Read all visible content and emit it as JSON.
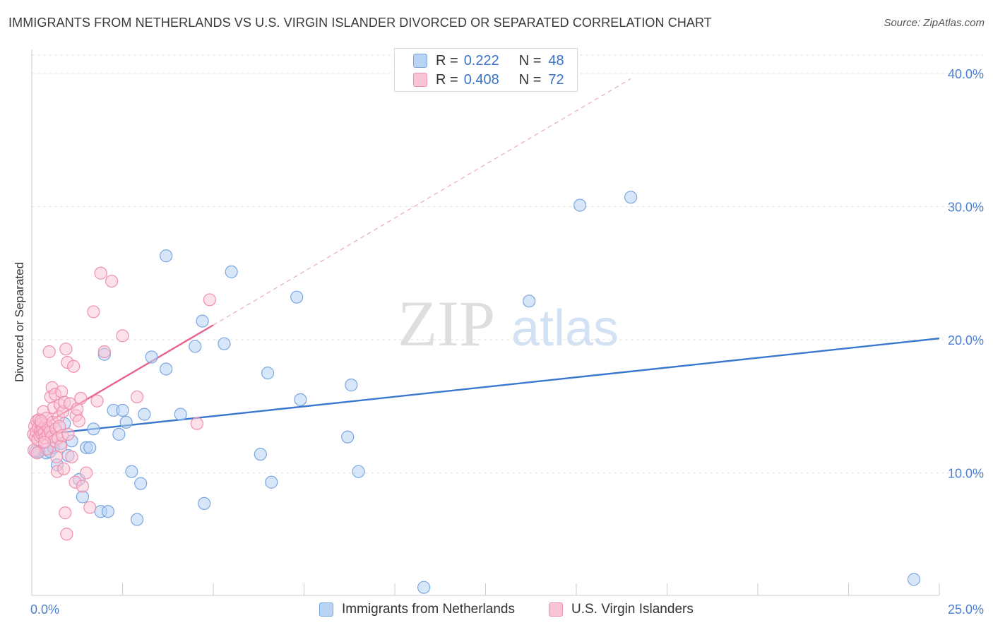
{
  "header": {
    "title": "IMMIGRANTS FROM NETHERLANDS VS U.S. VIRGIN ISLANDER DIVORCED OR SEPARATED CORRELATION CHART",
    "source": "Source: ZipAtlas.com"
  },
  "legend_top": {
    "rows": [
      {
        "r_label": "R =",
        "r_value": "0.222",
        "n_label": "N =",
        "n_value": "48"
      },
      {
        "r_label": "R =",
        "r_value": "0.408",
        "n_label": "N =",
        "n_value": "72"
      }
    ]
  },
  "legend_bottom": {
    "items": [
      "Immigrants from Netherlands",
      "U.S. Virgin Islanders"
    ]
  },
  "watermark": {
    "zip": "ZIP",
    "atlas": "atlas"
  },
  "colors": {
    "blue_fill": "#b8d2f4",
    "blue_stroke": "#7aa7e0",
    "blue_line": "#3a78cf",
    "pink_fill": "#f9c4d4",
    "pink_stroke": "#ef8fae",
    "pink_line": "#e8628f",
    "tick_text": "#4a7fd0",
    "grid": "#e3e3e3"
  },
  "chart_data": {
    "type": "scatter",
    "title": "IMMIGRANTS FROM NETHERLANDS VS U.S. VIRGIN ISLANDER DIVORCED OR SEPARATED CORRELATION CHART",
    "xlabel": "",
    "ylabel": "Divorced or Separated",
    "xlim": [
      0,
      25
    ],
    "ylim": [
      0.8,
      41.8
    ],
    "x_tick_labels": [
      "0.0%",
      "25.0%"
    ],
    "y_ticks": [
      10,
      20,
      30,
      40
    ],
    "y_tick_labels": [
      "10.0%",
      "20.0%",
      "30.0%",
      "40.0%"
    ],
    "grid": true,
    "series": [
      {
        "name": "Immigrants from Netherlands",
        "color": "#b8d2f4",
        "r": "0.222",
        "n": "48",
        "points": [
          [
            0.2,
            11.6
          ],
          [
            0.4,
            11.5
          ],
          [
            0.5,
            11.6
          ],
          [
            0.6,
            11.9
          ],
          [
            0.7,
            10.6
          ],
          [
            0.8,
            12.2
          ],
          [
            0.9,
            13.7
          ],
          [
            1.0,
            11.3
          ],
          [
            1.1,
            12.4
          ],
          [
            1.3,
            9.5
          ],
          [
            1.4,
            8.2
          ],
          [
            1.5,
            11.9
          ],
          [
            1.6,
            11.9
          ],
          [
            1.7,
            13.3
          ],
          [
            1.9,
            7.1
          ],
          [
            2.0,
            18.9
          ],
          [
            2.1,
            7.1
          ],
          [
            2.25,
            14.7
          ],
          [
            2.4,
            12.9
          ],
          [
            2.5,
            14.7
          ],
          [
            2.6,
            13.8
          ],
          [
            2.75,
            10.1
          ],
          [
            2.9,
            6.5
          ],
          [
            3.0,
            9.2
          ],
          [
            3.1,
            14.4
          ],
          [
            3.3,
            18.7
          ],
          [
            3.7,
            17.8
          ],
          [
            3.7,
            26.3
          ],
          [
            4.1,
            14.4
          ],
          [
            4.5,
            19.5
          ],
          [
            4.7,
            21.4
          ],
          [
            4.75,
            7.7
          ],
          [
            5.3,
            19.7
          ],
          [
            5.5,
            25.1
          ],
          [
            6.3,
            11.4
          ],
          [
            6.5,
            17.5
          ],
          [
            6.6,
            9.3
          ],
          [
            7.3,
            23.2
          ],
          [
            7.4,
            15.5
          ],
          [
            8.7,
            12.7
          ],
          [
            8.8,
            16.6
          ],
          [
            9.0,
            10.1
          ],
          [
            10.8,
            1.4
          ],
          [
            13.7,
            22.9
          ],
          [
            15.1,
            30.1
          ],
          [
            16.5,
            30.7
          ],
          [
            24.3,
            2.0
          ],
          [
            0.1,
            11.6
          ]
        ]
      },
      {
        "name": "U.S. Virgin Islanders",
        "color": "#f9c4d4",
        "r": "0.408",
        "n": "72",
        "points": [
          [
            0.05,
            12.9
          ],
          [
            0.08,
            13.5
          ],
          [
            0.1,
            12.7
          ],
          [
            0.12,
            13.1
          ],
          [
            0.14,
            13.9
          ],
          [
            0.16,
            12.5
          ],
          [
            0.18,
            13.4
          ],
          [
            0.2,
            14.0
          ],
          [
            0.22,
            12.8
          ],
          [
            0.24,
            13.2
          ],
          [
            0.26,
            13.7
          ],
          [
            0.28,
            12.9
          ],
          [
            0.3,
            13.3
          ],
          [
            0.32,
            14.6
          ],
          [
            0.34,
            13.0
          ],
          [
            0.36,
            12.6
          ],
          [
            0.38,
            13.6
          ],
          [
            0.4,
            14.1
          ],
          [
            0.42,
            11.8
          ],
          [
            0.44,
            12.9
          ],
          [
            0.46,
            13.4
          ],
          [
            0.48,
            19.1
          ],
          [
            0.5,
            13.1
          ],
          [
            0.52,
            15.7
          ],
          [
            0.54,
            12.7
          ],
          [
            0.56,
            16.4
          ],
          [
            0.58,
            13.8
          ],
          [
            0.6,
            14.9
          ],
          [
            0.62,
            12.4
          ],
          [
            0.64,
            15.9
          ],
          [
            0.66,
            13.3
          ],
          [
            0.68,
            11.2
          ],
          [
            0.7,
            10.1
          ],
          [
            0.72,
            12.6
          ],
          [
            0.74,
            14.2
          ],
          [
            0.76,
            13.5
          ],
          [
            0.78,
            15.1
          ],
          [
            0.8,
            12.0
          ],
          [
            0.82,
            16.1
          ],
          [
            0.84,
            12.8
          ],
          [
            0.86,
            14.6
          ],
          [
            0.88,
            10.3
          ],
          [
            0.9,
            15.3
          ],
          [
            0.92,
            7.0
          ],
          [
            0.94,
            19.3
          ],
          [
            0.96,
            5.4
          ],
          [
            0.98,
            18.3
          ],
          [
            1.0,
            12.9
          ],
          [
            1.05,
            15.2
          ],
          [
            1.1,
            11.2
          ],
          [
            1.15,
            18.0
          ],
          [
            1.2,
            9.3
          ],
          [
            1.22,
            14.3
          ],
          [
            1.25,
            14.8
          ],
          [
            1.3,
            13.9
          ],
          [
            1.35,
            15.6
          ],
          [
            1.4,
            9.0
          ],
          [
            1.5,
            10.0
          ],
          [
            1.6,
            7.4
          ],
          [
            1.7,
            22.1
          ],
          [
            1.8,
            15.4
          ],
          [
            1.9,
            25.0
          ],
          [
            2.0,
            19.1
          ],
          [
            2.2,
            24.4
          ],
          [
            2.5,
            20.3
          ],
          [
            2.9,
            15.7
          ],
          [
            4.55,
            13.7
          ],
          [
            4.9,
            23.0
          ],
          [
            0.06,
            11.7
          ],
          [
            0.15,
            11.5
          ],
          [
            0.25,
            13.9
          ],
          [
            0.35,
            12.3
          ]
        ]
      }
    ],
    "trend_lines": [
      {
        "series": "Immigrants from Netherlands",
        "from": [
          0,
          12.8
        ],
        "to": [
          25,
          20.1
        ]
      },
      {
        "series": "U.S. Virgin Islanders",
        "from": [
          0,
          13.1
        ],
        "to": [
          5,
          21.1
        ],
        "dashed_extension_to": [
          16.5,
          39.6
        ]
      }
    ]
  }
}
